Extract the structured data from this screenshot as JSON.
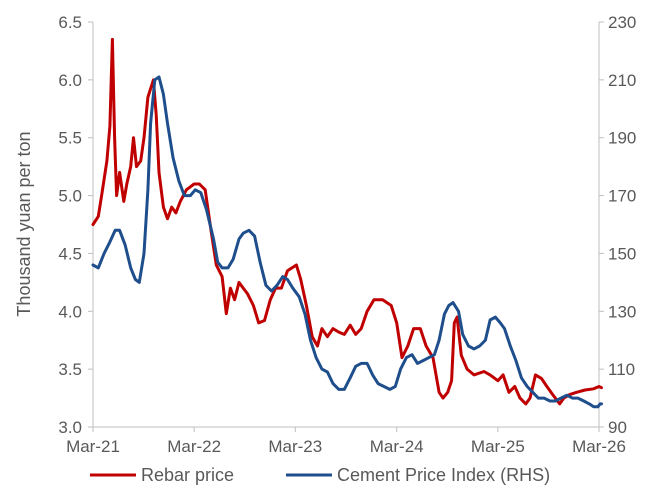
{
  "chart_data": {
    "type": "line",
    "title": "",
    "ylabel": "Thousand yuan per ton",
    "ylabel_right": "",
    "x_tick_labels": [
      "Mar-21",
      "Mar-22",
      "Mar-23",
      "Mar-24",
      "Mar-25",
      "Mar-26"
    ],
    "x_range": [
      "2021-03",
      "2026-03"
    ],
    "y_left": {
      "range": [
        3.0,
        6.5
      ],
      "ticks": [
        "3.0",
        "3.5",
        "4.0",
        "4.5",
        "5.0",
        "5.5",
        "6.0",
        "6.5"
      ]
    },
    "y_right": {
      "range": [
        90,
        230
      ],
      "ticks": [
        "90",
        "110",
        "130",
        "150",
        "170",
        "190",
        "210",
        "230"
      ]
    },
    "grid": false,
    "legend_position": "bottom",
    "series": [
      {
        "name": "Rebar price",
        "axis": "left",
        "color": "#c00000",
        "points": [
          [
            "2021-03",
            4.75
          ],
          [
            "2021-03-20",
            4.82
          ],
          [
            "2021-04",
            5.0
          ],
          [
            "2021-04-20",
            5.3
          ],
          [
            "2021-05-01",
            5.6
          ],
          [
            "2021-05-10",
            6.35
          ],
          [
            "2021-05-18",
            5.5
          ],
          [
            "2021-05-25",
            5.0
          ],
          [
            "2021-06-05",
            5.2
          ],
          [
            "2021-06-20",
            4.95
          ],
          [
            "2021-07-01",
            5.1
          ],
          [
            "2021-07-15",
            5.25
          ],
          [
            "2021-07-25",
            5.5
          ],
          [
            "2021-08-05",
            5.25
          ],
          [
            "2021-08-20",
            5.3
          ],
          [
            "2021-09-01",
            5.5
          ],
          [
            "2021-09-15",
            5.85
          ],
          [
            "2021-10-05",
            6.0
          ],
          [
            "2021-10-15",
            5.7
          ],
          [
            "2021-10-25",
            5.2
          ],
          [
            "2021-11-10",
            4.9
          ],
          [
            "2021-11-25",
            4.8
          ],
          [
            "2021-12-10",
            4.9
          ],
          [
            "2021-12-25",
            4.85
          ],
          [
            "2022-01-10",
            4.95
          ],
          [
            "2022-02-01",
            5.05
          ],
          [
            "2022-03-01",
            5.1
          ],
          [
            "2022-03-20",
            5.1
          ],
          [
            "2022-04-10",
            5.05
          ],
          [
            "2022-05-01",
            4.7
          ],
          [
            "2022-05-20",
            4.4
          ],
          [
            "2022-06-10",
            4.3
          ],
          [
            "2022-06-25",
            3.98
          ],
          [
            "2022-07-10",
            4.2
          ],
          [
            "2022-07-25",
            4.1
          ],
          [
            "2022-08-10",
            4.25
          ],
          [
            "2022-08-25",
            4.2
          ],
          [
            "2022-09-10",
            4.15
          ],
          [
            "2022-10-01",
            4.05
          ],
          [
            "2022-10-20",
            3.9
          ],
          [
            "2022-11-10",
            3.92
          ],
          [
            "2022-12-01",
            4.1
          ],
          [
            "2022-12-20",
            4.2
          ],
          [
            "2023-01-10",
            4.2
          ],
          [
            "2023-02-01",
            4.35
          ],
          [
            "2023-03-05",
            4.4
          ],
          [
            "2023-03-20",
            4.28
          ],
          [
            "2023-04-10",
            4.05
          ],
          [
            "2023-05-01",
            3.78
          ],
          [
            "2023-05-20",
            3.7
          ],
          [
            "2023-06-05",
            3.85
          ],
          [
            "2023-06-25",
            3.78
          ],
          [
            "2023-07-15",
            3.85
          ],
          [
            "2023-08-05",
            3.82
          ],
          [
            "2023-08-25",
            3.8
          ],
          [
            "2023-09-15",
            3.88
          ],
          [
            "2023-10-05",
            3.8
          ],
          [
            "2023-10-25",
            3.85
          ],
          [
            "2023-11-15",
            4.0
          ],
          [
            "2023-12-10",
            4.1
          ],
          [
            "2024-01-10",
            4.1
          ],
          [
            "2024-02-10",
            4.05
          ],
          [
            "2024-03-01",
            3.9
          ],
          [
            "2024-03-20",
            3.6
          ],
          [
            "2024-04-10",
            3.7
          ],
          [
            "2024-05-01",
            3.85
          ],
          [
            "2024-05-25",
            3.85
          ],
          [
            "2024-06-15",
            3.7
          ],
          [
            "2024-07-10",
            3.6
          ],
          [
            "2024-08-01",
            3.3
          ],
          [
            "2024-08-15",
            3.25
          ],
          [
            "2024-09-01",
            3.3
          ],
          [
            "2024-09-15",
            3.4
          ],
          [
            "2024-09-25",
            3.9
          ],
          [
            "2024-10-05",
            3.95
          ],
          [
            "2024-10-20",
            3.62
          ],
          [
            "2024-11-10",
            3.5
          ],
          [
            "2024-12-05",
            3.45
          ],
          [
            "2025-01-10",
            3.48
          ],
          [
            "2025-02-01",
            3.45
          ],
          [
            "2025-03-01",
            3.4
          ],
          [
            "2025-03-20",
            3.45
          ],
          [
            "2025-04-10",
            3.3
          ],
          [
            "2025-05-01",
            3.35
          ],
          [
            "2025-05-20",
            3.25
          ],
          [
            "2025-06-10",
            3.2
          ],
          [
            "2025-06-25",
            3.25
          ],
          [
            "2025-07-15",
            3.45
          ],
          [
            "2025-08-05",
            3.42
          ],
          [
            "2025-08-25",
            3.35
          ],
          [
            "2025-09-15",
            3.28
          ],
          [
            "2025-10-10",
            3.2
          ],
          [
            "2025-10-25",
            3.25
          ],
          [
            "2025-11-15",
            3.28
          ],
          [
            "2025-12-10",
            3.3
          ],
          [
            "2026-01-10",
            3.32
          ],
          [
            "2026-02-10",
            3.33
          ],
          [
            "2026-03-01",
            3.35
          ],
          [
            "2026-03-10",
            3.34
          ]
        ]
      },
      {
        "name": "Cement Price Index (RHS)",
        "axis": "right",
        "color": "#1f4e8c",
        "points": [
          [
            "2021-03",
            146
          ],
          [
            "2021-03-20",
            145
          ],
          [
            "2021-04-10",
            150
          ],
          [
            "2021-05-01",
            154
          ],
          [
            "2021-05-20",
            158
          ],
          [
            "2021-06-05",
            158
          ],
          [
            "2021-06-25",
            153
          ],
          [
            "2021-07-15",
            145
          ],
          [
            "2021-08-01",
            141
          ],
          [
            "2021-08-15",
            140
          ],
          [
            "2021-09-01",
            150
          ],
          [
            "2021-09-15",
            172
          ],
          [
            "2021-09-25",
            195
          ],
          [
            "2021-10-10",
            210
          ],
          [
            "2021-10-25",
            211
          ],
          [
            "2021-11-10",
            205
          ],
          [
            "2021-11-25",
            195
          ],
          [
            "2021-12-15",
            183
          ],
          [
            "2022-01-05",
            175
          ],
          [
            "2022-01-25",
            170
          ],
          [
            "2022-02-15",
            170
          ],
          [
            "2022-03-05",
            172
          ],
          [
            "2022-03-25",
            171
          ],
          [
            "2022-04-15",
            165
          ],
          [
            "2022-05-10",
            155
          ],
          [
            "2022-05-25",
            147
          ],
          [
            "2022-06-10",
            145
          ],
          [
            "2022-07-01",
            145
          ],
          [
            "2022-07-20",
            148
          ],
          [
            "2022-08-10",
            155
          ],
          [
            "2022-08-25",
            157
          ],
          [
            "2022-09-15",
            158
          ],
          [
            "2022-10-05",
            156
          ],
          [
            "2022-10-25",
            147
          ],
          [
            "2022-11-15",
            139
          ],
          [
            "2022-12-05",
            137
          ],
          [
            "2022-12-25",
            139
          ],
          [
            "2023-01-15",
            142
          ],
          [
            "2023-02-01",
            141
          ],
          [
            "2023-02-20",
            138
          ],
          [
            "2023-03-15",
            135
          ],
          [
            "2023-04-05",
            129
          ],
          [
            "2023-04-25",
            120
          ],
          [
            "2023-05-15",
            114
          ],
          [
            "2023-06-05",
            110
          ],
          [
            "2023-06-25",
            109
          ],
          [
            "2023-07-15",
            105
          ],
          [
            "2023-08-05",
            103
          ],
          [
            "2023-08-25",
            103
          ],
          [
            "2023-09-15",
            107
          ],
          [
            "2023-10-05",
            111
          ],
          [
            "2023-10-25",
            112
          ],
          [
            "2023-11-15",
            112
          ],
          [
            "2023-12-05",
            108
          ],
          [
            "2023-12-25",
            105
          ],
          [
            "2024-01-15",
            104
          ],
          [
            "2024-02-05",
            103
          ],
          [
            "2024-02-25",
            104
          ],
          [
            "2024-03-15",
            110
          ],
          [
            "2024-04-05",
            114
          ],
          [
            "2024-04-25",
            115
          ],
          [
            "2024-05-15",
            112
          ],
          [
            "2024-06-05",
            113
          ],
          [
            "2024-06-25",
            114
          ],
          [
            "2024-07-15",
            115
          ],
          [
            "2024-08-01",
            120
          ],
          [
            "2024-08-20",
            129
          ],
          [
            "2024-09-05",
            132
          ],
          [
            "2024-09-20",
            133
          ],
          [
            "2024-10-10",
            130
          ],
          [
            "2024-10-25",
            122
          ],
          [
            "2024-11-15",
            118
          ],
          [
            "2024-12-05",
            117
          ],
          [
            "2024-12-25",
            118
          ],
          [
            "2025-01-15",
            120
          ],
          [
            "2025-02-01",
            127
          ],
          [
            "2025-02-20",
            128
          ],
          [
            "2025-03-10",
            126
          ],
          [
            "2025-03-25",
            124
          ],
          [
            "2025-04-15",
            118
          ],
          [
            "2025-05-05",
            113
          ],
          [
            "2025-05-25",
            107
          ],
          [
            "2025-06-15",
            104
          ],
          [
            "2025-07-05",
            102
          ],
          [
            "2025-07-25",
            100
          ],
          [
            "2025-08-15",
            100
          ],
          [
            "2025-09-05",
            99
          ],
          [
            "2025-09-25",
            99
          ],
          [
            "2025-10-15",
            100
          ],
          [
            "2025-11-05",
            101
          ],
          [
            "2025-11-25",
            100
          ],
          [
            "2025-12-15",
            100
          ],
          [
            "2026-01-05",
            99
          ],
          [
            "2026-01-25",
            98
          ],
          [
            "2026-02-10",
            97
          ],
          [
            "2026-02-25",
            97
          ],
          [
            "2026-03-05",
            98
          ],
          [
            "2026-03-10",
            98
          ]
        ]
      }
    ]
  }
}
